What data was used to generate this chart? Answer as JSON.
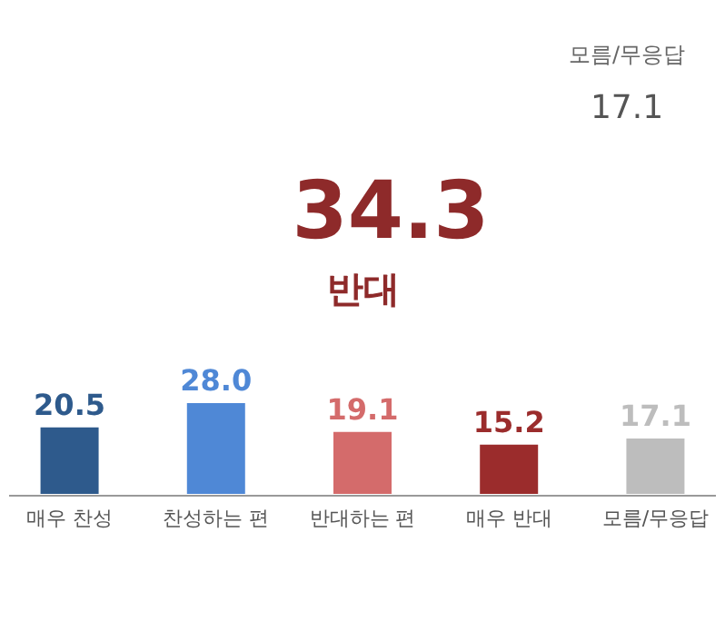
{
  "chart_data": {
    "type": "bar",
    "categories": [
      "매우 찬성",
      "찬성하는 편",
      "반대하는 편",
      "매우 반대",
      "모름/무응답"
    ],
    "values": [
      20.5,
      28.0,
      19.1,
      15.2,
      17.1
    ],
    "value_labels": [
      "20.5",
      "28.0",
      "19.1",
      "15.2",
      "17.1"
    ],
    "colors": [
      "#2e5a8c",
      "#4f88d6",
      "#d46b6b",
      "#9b2c2c",
      "#bdbdbd"
    ],
    "grid": false,
    "annotations": [
      "모름/무응답",
      "17.1",
      "34.3",
      "반대"
    ]
  }
}
